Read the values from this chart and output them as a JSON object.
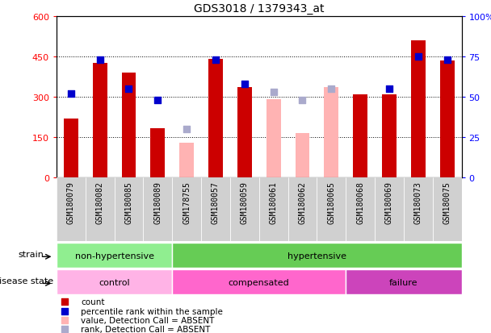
{
  "title": "GDS3018 / 1379343_at",
  "samples": [
    "GSM180079",
    "GSM180082",
    "GSM180085",
    "GSM180089",
    "GSM178755",
    "GSM180057",
    "GSM180059",
    "GSM180061",
    "GSM180062",
    "GSM180065",
    "GSM180068",
    "GSM180069",
    "GSM180073",
    "GSM180075"
  ],
  "count_present": [
    220,
    425,
    390,
    185,
    null,
    440,
    335,
    null,
    null,
    null,
    310,
    310,
    510,
    435
  ],
  "count_absent": [
    null,
    null,
    null,
    null,
    130,
    null,
    null,
    290,
    165,
    335,
    null,
    null,
    null,
    null
  ],
  "rank_present": [
    52,
    73,
    55,
    48,
    null,
    73,
    58,
    null,
    null,
    null,
    null,
    55,
    75,
    73
  ],
  "rank_absent": [
    null,
    null,
    null,
    null,
    30,
    null,
    null,
    53,
    48,
    55,
    null,
    null,
    null,
    null
  ],
  "strain_groups": [
    {
      "label": "non-hypertensive",
      "start": 0,
      "end": 4,
      "color": "#90ee90"
    },
    {
      "label": "hypertensive",
      "start": 4,
      "end": 14,
      "color": "#66cc55"
    }
  ],
  "disease_groups": [
    {
      "label": "control",
      "start": 0,
      "end": 4,
      "color": "#ffb3e6"
    },
    {
      "label": "compensated",
      "start": 4,
      "end": 10,
      "color": "#ff66cc"
    },
    {
      "label": "failure",
      "start": 10,
      "end": 14,
      "color": "#cc44bb"
    }
  ],
  "ylim_left": [
    0,
    600
  ],
  "ylim_right": [
    0,
    100
  ],
  "yticks_left": [
    0,
    150,
    300,
    450,
    600
  ],
  "yticks_right": [
    0,
    25,
    50,
    75,
    100
  ],
  "bar_color_present": "#cc0000",
  "bar_color_absent": "#ffb3b3",
  "dot_color_present": "#0000cc",
  "dot_color_absent": "#aaaacc",
  "background_color": "#ffffff",
  "col_bg_even": "#e8e8e8",
  "col_bg_odd": "#d0d0d0"
}
